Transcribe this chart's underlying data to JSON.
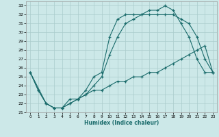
{
  "xlabel": "Humidex (Indice chaleur)",
  "bg_color": "#cce8e8",
  "grid_color": "#aacccc",
  "line_color": "#1a6b6b",
  "xlim": [
    -0.5,
    23.5
  ],
  "ylim": [
    21,
    33.5
  ],
  "xticks": [
    0,
    1,
    2,
    3,
    4,
    5,
    6,
    7,
    8,
    9,
    10,
    11,
    12,
    13,
    14,
    15,
    16,
    17,
    18,
    19,
    20,
    21,
    22,
    23
  ],
  "yticks": [
    21,
    22,
    23,
    24,
    25,
    26,
    27,
    28,
    29,
    30,
    31,
    32,
    33
  ],
  "max_x": [
    0,
    1,
    2,
    3,
    4,
    5,
    6,
    7,
    8,
    9,
    10,
    11,
    12,
    13,
    14,
    15,
    16,
    17,
    18,
    19,
    20,
    21,
    22,
    23
  ],
  "max_y": [
    25.5,
    23.5,
    22.0,
    21.5,
    21.5,
    22.5,
    22.5,
    23.5,
    25.0,
    25.5,
    29.5,
    31.5,
    32.0,
    32.0,
    32.0,
    32.5,
    32.5,
    33.0,
    32.5,
    31.0,
    29.5,
    27.0,
    25.5,
    25.5
  ],
  "mid_x": [
    0,
    2,
    3,
    4,
    5,
    6,
    7,
    8,
    9,
    10,
    11,
    12,
    13,
    14,
    15,
    16,
    17,
    18,
    19,
    20,
    21,
    22,
    23
  ],
  "mid_y": [
    25.5,
    22.0,
    21.5,
    21.5,
    22.0,
    22.5,
    23.0,
    24.0,
    25.0,
    27.5,
    29.5,
    31.0,
    31.5,
    32.0,
    32.0,
    32.0,
    32.0,
    32.0,
    31.5,
    31.0,
    29.5,
    27.0,
    25.5
  ],
  "min_x": [
    0,
    1,
    2,
    3,
    4,
    5,
    6,
    7,
    8,
    9,
    10,
    11,
    12,
    13,
    14,
    15,
    16,
    17,
    18,
    19,
    20,
    21,
    22,
    23
  ],
  "min_y": [
    25.5,
    23.5,
    22.0,
    21.5,
    21.5,
    22.0,
    22.5,
    23.0,
    23.5,
    23.5,
    24.0,
    24.5,
    24.5,
    25.0,
    25.0,
    25.5,
    25.5,
    26.0,
    26.5,
    27.0,
    27.5,
    28.0,
    28.5,
    25.5
  ]
}
